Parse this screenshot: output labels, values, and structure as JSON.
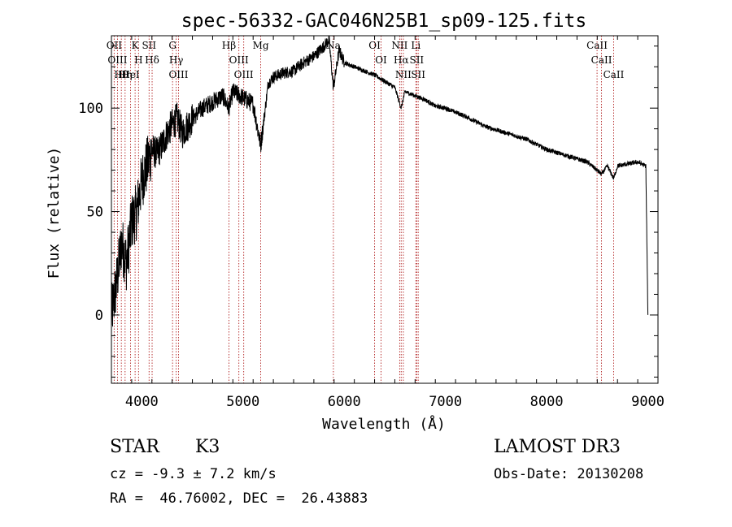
{
  "chart_data": {
    "type": "line",
    "title": "spec-56332-GAC046N25B1_sp09-125.fits",
    "xlabel": "Wavelength (Å)",
    "ylabel": "Flux (relative)",
    "xlim": [
      3700,
      9100
    ],
    "ylim": [
      -33,
      135
    ],
    "x_ticks": [
      4000,
      5000,
      6000,
      7000,
      8000,
      9000
    ],
    "y_ticks": [
      0,
      50,
      100
    ],
    "x_tick_labels": [
      "4000",
      "5000",
      "6000",
      "7000",
      "8000",
      "9000"
    ],
    "y_tick_labels": [
      "0",
      "50",
      "100"
    ],
    "line_color": "#000000",
    "marker_color": "#b22222",
    "spectrum_anchors": {
      "x": [
        3700,
        3750,
        3800,
        3850,
        3900,
        3950,
        4000,
        4050,
        4100,
        4150,
        4200,
        4250,
        4300,
        4350,
        4400,
        4500,
        4600,
        4700,
        4800,
        4860,
        4900,
        5000,
        5100,
        5175,
        5250,
        5300,
        5400,
        5500,
        5600,
        5700,
        5800,
        5850,
        5893,
        5950,
        6000,
        6100,
        6200,
        6300,
        6400,
        6500,
        6563,
        6600,
        6700,
        6800,
        6900,
        7000,
        7200,
        7400,
        7600,
        7800,
        8000,
        8200,
        8400,
        8498,
        8542,
        8600,
        8662,
        8700,
        8800,
        8900,
        8980,
        9000
      ],
      "y": [
        0,
        15,
        35,
        25,
        45,
        50,
        65,
        72,
        80,
        78,
        82,
        88,
        92,
        95,
        88,
        95,
        100,
        103,
        106,
        100,
        108,
        105,
        102,
        82,
        112,
        115,
        117,
        118,
        122,
        125,
        130,
        133,
        110,
        128,
        122,
        120,
        118,
        116,
        113,
        110,
        100,
        108,
        106,
        104,
        101,
        100,
        96,
        91,
        88,
        85,
        80,
        77,
        74,
        70,
        68,
        72,
        66,
        72,
        73,
        74,
        72,
        0
      ]
    },
    "lines": [
      {
        "name": "Hθ",
        "wavelength": 3798
      },
      {
        "name": "OII",
        "wavelength": 3727
      },
      {
        "name": "OIII",
        "wavelength": 3760
      },
      {
        "name": "Hη",
        "wavelength": 3835
      },
      {
        "name": "K",
        "wavelength": 3934
      },
      {
        "name": "HeI",
        "wavelength": 3889
      },
      {
        "name": "H",
        "wavelength": 3968
      },
      {
        "name": "SII",
        "wavelength": 4072
      },
      {
        "name": "Hδ",
        "wavelength": 4102
      },
      {
        "name": "OIII",
        "wavelength": 4363
      },
      {
        "name": "Hγ",
        "wavelength": 4340
      },
      {
        "name": "G",
        "wavelength": 4304
      },
      {
        "name": "Hβ",
        "wavelength": 4861
      },
      {
        "name": "OIII",
        "wavelength": 4959
      },
      {
        "name": "OIII",
        "wavelength": 5007
      },
      {
        "name": "Mg",
        "wavelength": 5175
      },
      {
        "name": "Na",
        "wavelength": 5893
      },
      {
        "name": "OI",
        "wavelength": 6300
      },
      {
        "name": "OI",
        "wavelength": 6364
      },
      {
        "name": "Hα",
        "wavelength": 6563
      },
      {
        "name": "NII",
        "wavelength": 6548
      },
      {
        "name": "NII",
        "wavelength": 6584
      },
      {
        "name": "SII",
        "wavelength": 6716
      },
      {
        "name": "SII",
        "wavelength": 6731
      },
      {
        "name": "Li",
        "wavelength": 6708
      },
      {
        "name": "CaII",
        "wavelength": 8498
      },
      {
        "name": "CaII",
        "wavelength": 8542
      },
      {
        "name": "CaII",
        "wavelength": 8662
      }
    ]
  },
  "info": {
    "class_label": "STAR",
    "subclass": "K3",
    "cz": "cz = -9.3 ± 7.2 km/s",
    "radec": "RA =  46.76002, DEC =  26.43883",
    "survey": "LAMOST DR3",
    "obs_date": "Obs-Date: 20130208"
  }
}
